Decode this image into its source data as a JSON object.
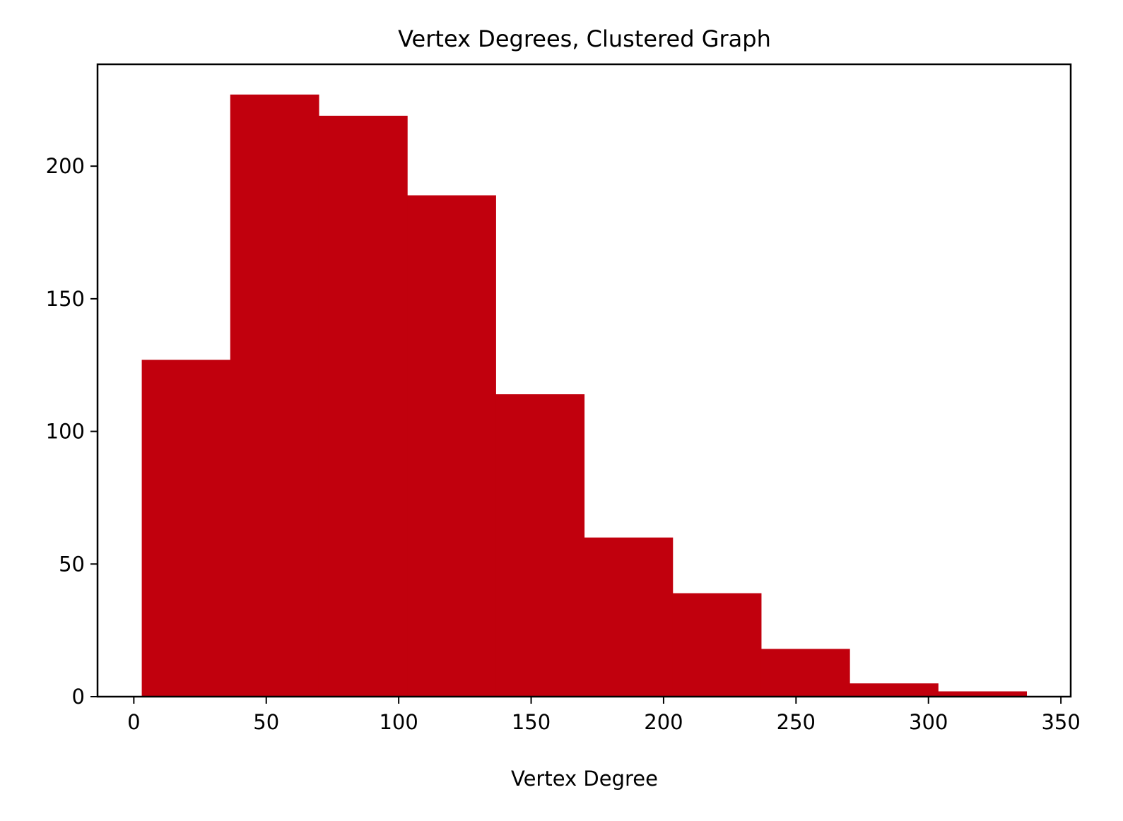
{
  "chart_data": {
    "type": "bar",
    "title": "Vertex Degrees, Clustered Graph",
    "xlabel": "Vertex Degree",
    "ylabel": "",
    "bins": [
      {
        "x0": 3.0,
        "x1": 36.4,
        "count": 127
      },
      {
        "x0": 36.4,
        "x1": 69.8,
        "count": 227
      },
      {
        "x0": 69.8,
        "x1": 103.2,
        "count": 219
      },
      {
        "x0": 103.2,
        "x1": 136.6,
        "count": 189
      },
      {
        "x0": 136.6,
        "x1": 170.0,
        "count": 114
      },
      {
        "x0": 170.0,
        "x1": 203.4,
        "count": 60
      },
      {
        "x0": 203.4,
        "x1": 236.8,
        "count": 39
      },
      {
        "x0": 236.8,
        "x1": 270.2,
        "count": 18
      },
      {
        "x0": 270.2,
        "x1": 303.6,
        "count": 5
      },
      {
        "x0": 303.6,
        "x1": 337.0,
        "count": 2
      }
    ],
    "xlim": [
      -13.7,
      353.7
    ],
    "ylim": [
      0,
      238.4
    ],
    "xticks": [
      0,
      50,
      100,
      150,
      200,
      250,
      300,
      350
    ],
    "yticks": [
      0,
      50,
      100,
      150,
      200
    ],
    "bar_color": "#c1000d",
    "grid": false,
    "legend": "none"
  }
}
